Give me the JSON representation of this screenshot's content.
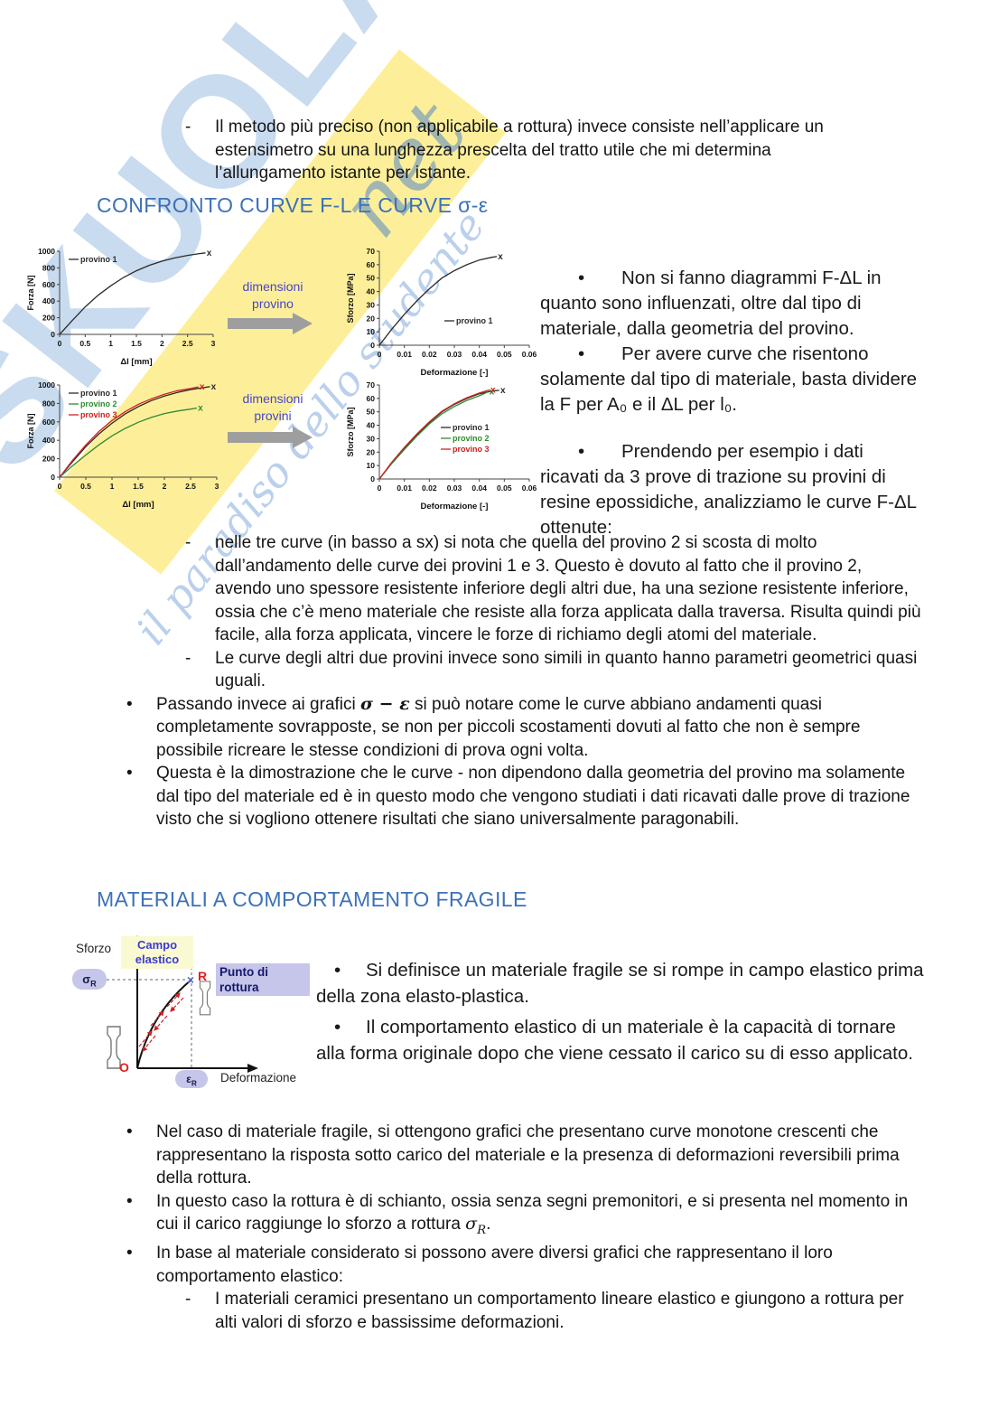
{
  "watermark": {
    "brand": "SKUOLA",
    "script": "net",
    "tagline": "il paradiso dello studente"
  },
  "intro": {
    "marker": "-",
    "text": "Il metodo più preciso (non applicabile a rottura) invece consiste nell’applicare un estensimetro su una lunghezza prescelta del tratto utile che mi determina l’allungamento istante per istante."
  },
  "headings": {
    "h1": "CONFRONTO CURVE F-L E CURVE σ-ε",
    "h2": "MATERIALI A COMPORTAMENTO FRAGILE"
  },
  "arrows": {
    "a1": "dimensioni provino",
    "a2": "dimensioni provini"
  },
  "right_column": {
    "bullet": "•",
    "b1": "Non si fanno diagrammi F-ΔL in quanto sono influenzati, oltre dal tipo di materiale, dalla geometria del provino.",
    "b2": "Per avere curve che risentono solamente dal tipo di materiale, basta dividere la F per A₀ e il ΔL per l₀.",
    "b3": "Prendendo per esempio i dati ricavati da 3 prove di trazione su provini di resine epossidiche, analizziamo le curve F-ΔL ottenute:"
  },
  "mid_items": {
    "dash": "-",
    "bullet": "•",
    "d1": "nelle tre curve (in basso a sx) si nota che quella del provino 2 si scosta di molto dall’andamento delle curve dei provini 1 e 3. Questo è dovuto al fatto che il provino 2, avendo uno spessore resistente inferiore degli altri due, ha una sezione resistente inferiore, ossia che c’è meno materiale che resiste alla forza applicata dalla traversa. Risulta quindi più facile, alla forza applicata, vincere le forze di richiamo degli atomi del materiale.",
    "d2": "Le curve degli altri due provini invece sono simili in quanto hanno parametri geometrici quasi uguali.",
    "b1_pre": "Passando invece ai grafici ",
    "b1_math": "σ − ε",
    "b1_post": " si può notare come le curve abbiano andamenti quasi completamente sovrapposte, se non per piccoli scostamenti dovuti al fatto che non è sempre possibile ricreare le stesse condizioni di prova ogni volta.",
    "b2": "Questa è la dimostrazione che le curve - non dipendono dalla geometria del provino ma solamente dal tipo del materiale ed è in questo modo che vengono studiati i dati ricavati dalle prove di trazione visto che si vogliono ottenere risultati che siano universalmente paragonabili."
  },
  "diagram": {
    "sforzo": "Sforzo",
    "campo": "Campo elastico",
    "sigma": "σ",
    "sigma_sub": "R",
    "r": "R",
    "punto": "Punto di rottura",
    "eps": "ε",
    "eps_sub": "R",
    "o": "O",
    "deformazione": "Deformazione"
  },
  "fragile": {
    "bullet": "•",
    "b1": "Si definisce un materiale fragile se si rompe in campo elastico prima della zona elasto-plastica.",
    "b2": "Il comportamento elastico di un materiale è la capacità di tornare alla forma originale dopo che viene cessato il carico su di esso applicato."
  },
  "bottom_items": {
    "dash": "-",
    "bullet": "•",
    "b1": "Nel caso di materiale fragile, si ottengono grafici che presentano curve monotone crescenti che rappresentano la risposta sotto carico del materiale e la presenza di deformazioni reversibili prima della rottura.",
    "b2_pre": "In questo caso la rottura è di schianto, ossia senza segni premonitori, e si presenta nel momento in cui il carico raggiunge lo sforzo a rottura ",
    "b2_math": "σ",
    "b2_sub": "R",
    "b2_post": ".",
    "b3": "In base al materiale considerato si possono avere diversi grafici che rappresentano il loro comportamento elastico:",
    "d1": "I materiali ceramici presentano un comportamento lineare elastico e giungono a rottura per alti valori di sforzo e bassissime deformazioni."
  },
  "chart_data": [
    {
      "type": "line",
      "name": "curva F-ΔL provino singolo",
      "xlabel": "Δl [mm]",
      "ylabel": "Forza [N]",
      "xlim": [
        0,
        3
      ],
      "ylim": [
        0,
        1000
      ],
      "x_ticks": [
        0,
        0.5,
        1,
        1.5,
        2,
        2.5,
        3
      ],
      "y_ticks": [
        0,
        200,
        400,
        600,
        800,
        1000
      ],
      "grid": false,
      "legend_pos": "tl",
      "series": [
        {
          "name": "provino 1",
          "color": "#2b2b2b",
          "end_marker": "x",
          "x": [
            0,
            0.25,
            0.5,
            0.75,
            1,
            1.25,
            1.5,
            1.75,
            2,
            2.25,
            2.5,
            2.7,
            2.85
          ],
          "y": [
            0,
            170,
            330,
            470,
            585,
            685,
            765,
            830,
            880,
            920,
            950,
            968,
            980
          ]
        }
      ]
    },
    {
      "type": "line",
      "name": "curva σ-ε provino singolo",
      "xlabel": "Deformazione  [-]",
      "ylabel": "Sforzo [MPa]",
      "xlim": [
        0,
        0.06
      ],
      "ylim": [
        0,
        70
      ],
      "x_ticks": [
        0,
        0.01,
        0.02,
        0.03,
        0.04,
        0.05,
        0.06
      ],
      "y_ticks": [
        0,
        10,
        20,
        30,
        40,
        50,
        60,
        70
      ],
      "grid": false,
      "legend_pos": "br",
      "series": [
        {
          "name": "provino 1",
          "color": "#2b2b2b",
          "end_marker": "x",
          "x": [
            0,
            0.005,
            0.01,
            0.015,
            0.02,
            0.025,
            0.03,
            0.035,
            0.04,
            0.045,
            0.047
          ],
          "y": [
            0,
            12,
            23,
            33,
            42,
            50,
            55.5,
            60,
            63.5,
            65.5,
            66
          ]
        }
      ]
    },
    {
      "type": "line",
      "name": "curve F-ΔL tre provini resina epossidica",
      "xlabel": "Δl  [mm]",
      "ylabel": "Forza [N]",
      "xlim": [
        0,
        3
      ],
      "ylim": [
        0,
        1000
      ],
      "x_ticks": [
        0,
        0.5,
        1,
        1.5,
        2,
        2.5,
        3
      ],
      "y_ticks": [
        0,
        200,
        400,
        600,
        800,
        1000
      ],
      "grid": false,
      "legend_pos": "tl",
      "series": [
        {
          "name": "provino 1",
          "color": "#2b2b2b",
          "end_marker": "x",
          "x": [
            0,
            0.25,
            0.5,
            0.75,
            1,
            1.25,
            1.5,
            1.75,
            2,
            2.25,
            2.5,
            2.87
          ],
          "y": [
            0,
            170,
            330,
            470,
            585,
            685,
            765,
            830,
            880,
            920,
            950,
            982
          ]
        },
        {
          "name": "provino 2",
          "color": "#2e8b2e",
          "end_marker": "x",
          "x": [
            0,
            0.25,
            0.5,
            0.75,
            1,
            1.25,
            1.5,
            1.75,
            2,
            2.25,
            2.5,
            2.62
          ],
          "y": [
            0,
            125,
            240,
            350,
            448,
            528,
            595,
            648,
            690,
            718,
            738,
            750
          ]
        },
        {
          "name": "provino 3",
          "color": "#cc2222",
          "end_marker": "x",
          "x": [
            0,
            0.25,
            0.5,
            0.75,
            1,
            1.25,
            1.5,
            1.75,
            2,
            2.25,
            2.5,
            2.65
          ],
          "y": [
            0,
            185,
            350,
            495,
            615,
            710,
            790,
            850,
            900,
            938,
            962,
            978
          ]
        }
      ]
    },
    {
      "type": "line",
      "name": "curve σ-ε tre provini resina epossidica",
      "xlabel": "Deformazione  [-]",
      "ylabel": "Sforzo [MPa]",
      "xlim": [
        0,
        0.06
      ],
      "ylim": [
        0,
        70
      ],
      "x_ticks": [
        0,
        0.01,
        0.02,
        0.03,
        0.04,
        0.05,
        0.06
      ],
      "y_ticks": [
        0,
        10,
        20,
        30,
        40,
        50,
        60,
        70
      ],
      "grid": false,
      "legend_pos": "mr",
      "series": [
        {
          "name": "provino 1",
          "color": "#2b2b2b",
          "end_marker": "x",
          "x": [
            0,
            0.005,
            0.01,
            0.015,
            0.02,
            0.025,
            0.03,
            0.035,
            0.04,
            0.045,
            0.048
          ],
          "y": [
            0,
            12,
            23,
            33,
            42,
            50,
            55.5,
            60,
            63.5,
            65.5,
            66
          ]
        },
        {
          "name": "provino 2",
          "color": "#2e8b2e",
          "end_marker": "x",
          "x": [
            0,
            0.005,
            0.01,
            0.015,
            0.02,
            0.025,
            0.03,
            0.035,
            0.04,
            0.0435
          ],
          "y": [
            0,
            11.5,
            22,
            32,
            41,
            48.5,
            54,
            58.5,
            62,
            64.8
          ]
        },
        {
          "name": "provino 3",
          "color": "#cc2222",
          "end_marker": "x",
          "x": [
            0,
            0.005,
            0.01,
            0.015,
            0.02,
            0.025,
            0.03,
            0.035,
            0.04,
            0.044
          ],
          "y": [
            0,
            12.5,
            23.5,
            33.5,
            42.5,
            50.5,
            56,
            60.5,
            64,
            66.3
          ]
        }
      ]
    },
    {
      "type": "diagram",
      "name": "diagramma materiale fragile",
      "description": "Curva sforzo-deformazione monotona crescente fino al punto di rottura R raggiunto in campo elastico (σR, εR)",
      "labels": [
        "Sforzo",
        "Campo elastico",
        "σR",
        "R",
        "Punto di rottura",
        "O",
        "εR",
        "Deformazione"
      ]
    }
  ]
}
